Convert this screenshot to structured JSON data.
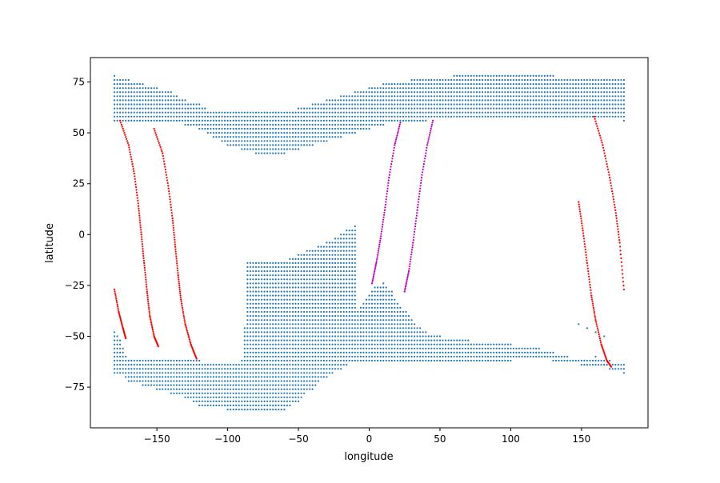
{
  "chart_data": {
    "type": "scatter",
    "title": "",
    "xlabel": "longitude",
    "ylabel": "latitude",
    "xlim": [
      -197,
      197
    ],
    "ylim": [
      -95,
      87
    ],
    "xticks": [
      -150,
      -100,
      -50,
      0,
      50,
      100,
      150
    ],
    "yticks": [
      -75,
      -50,
      -25,
      0,
      25,
      50,
      75
    ],
    "xtick_labels": [
      "−150",
      "−100",
      "−50",
      "0",
      "50",
      "100",
      "150"
    ],
    "ytick_labels": [
      "−75",
      "−50",
      "−25",
      "0",
      "25",
      "50",
      "75"
    ],
    "grid": false,
    "legend": "none",
    "grid_spacing": 2,
    "series": [
      {
        "color": "#1f77b4",
        "kind": "gridded-points",
        "rows": [
          [
            76,
            [
              [
                -180,
                -180
              ]
            ]
          ],
          [
            74,
            [
              [
                -180,
                -164
              ]
            ]
          ],
          [
            72,
            [
              [
                -180,
                -140
              ]
            ]
          ],
          [
            70,
            [
              [
                -180,
                -136
              ]
            ]
          ],
          [
            68,
            [
              [
                -180,
                -130
              ]
            ]
          ],
          [
            66,
            [
              [
                -180,
                -126
              ]
            ]
          ],
          [
            64,
            [
              [
                -180,
                -122
              ]
            ]
          ],
          [
            62,
            [
              [
                -180,
                -118
              ]
            ]
          ],
          [
            60,
            [
              [
                -180,
                -102
              ],
              [
                -66,
                -54
              ]
            ]
          ],
          [
            58,
            [
              [
                -180,
                -96
              ],
              [
                -70,
                -44
              ]
            ]
          ],
          [
            56,
            [
              [
                -180,
                -90
              ],
              [
                -74,
                -36
              ],
              [
                14,
                180
              ]
            ]
          ],
          [
            54,
            [
              [
                -164,
                -86
              ],
              [
                -78,
                -30
              ],
              [
                14,
                180
              ]
            ]
          ],
          [
            52,
            [
              [
                -150,
                -84
              ],
              [
                -80,
                -24
              ],
              [
                12,
                180
              ]
            ]
          ],
          [
            50,
            [
              [
                -140,
                -82
              ],
              [
                -82,
                -20
              ],
              [
                10,
                180
              ]
            ]
          ],
          [
            48,
            [
              [
                -130,
                -80
              ],
              [
                -82,
                -16
              ],
              [
                10,
                180
              ]
            ]
          ],
          [
            46,
            [
              [
                -120,
                -78
              ],
              [
                -84,
                -12
              ],
              [
                8,
                180
              ]
            ]
          ],
          [
            44,
            [
              [
                -110,
                -76
              ],
              [
                -84,
                -8
              ],
              [
                8,
                180
              ]
            ]
          ],
          [
            42,
            [
              [
                -98,
                -74
              ],
              [
                -82,
                -16
              ]
            ]
          ],
          [
            40,
            [
              [
                -86,
                -72
              ],
              [
                -76,
                -54
              ]
            ]
          ]
        ],
        "upper_band": [
          [
            -180,
            56,
            78
          ],
          [
            -170,
            56,
            76
          ],
          [
            -160,
            56,
            74
          ],
          [
            -150,
            56,
            72
          ],
          [
            -140,
            56,
            70
          ],
          [
            -130,
            54,
            66
          ],
          [
            -120,
            52,
            64
          ],
          [
            -110,
            48,
            60
          ],
          [
            -100,
            44,
            60
          ],
          [
            -90,
            42,
            60
          ],
          [
            -80,
            40,
            60
          ],
          [
            -70,
            40,
            60
          ],
          [
            -60,
            40,
            60
          ],
          [
            -50,
            42,
            62
          ],
          [
            -40,
            44,
            64
          ],
          [
            -30,
            46,
            66
          ],
          [
            -20,
            48,
            68
          ],
          [
            -10,
            50,
            70
          ],
          [
            0,
            52,
            72
          ],
          [
            10,
            54,
            74
          ],
          [
            20,
            56,
            74
          ],
          [
            30,
            56,
            76
          ],
          [
            40,
            56,
            76
          ],
          [
            50,
            58,
            76
          ],
          [
            60,
            58,
            78
          ],
          [
            70,
            58,
            78
          ],
          [
            80,
            58,
            78
          ],
          [
            90,
            58,
            78
          ],
          [
            100,
            58,
            78
          ],
          [
            110,
            58,
            78
          ],
          [
            120,
            58,
            78
          ],
          [
            130,
            58,
            78
          ],
          [
            140,
            58,
            76
          ],
          [
            150,
            58,
            76
          ],
          [
            160,
            58,
            76
          ],
          [
            170,
            58,
            76
          ],
          [
            180,
            56,
            76
          ]
        ],
        "lower_band": [
          [
            -180,
            -68,
            -48
          ],
          [
            -176,
            -68,
            -52
          ],
          [
            -170,
            -72,
            -62
          ],
          [
            -160,
            -74,
            -62
          ],
          [
            -150,
            -76,
            -62
          ],
          [
            -140,
            -78,
            -62
          ],
          [
            -130,
            -80,
            -62
          ],
          [
            -120,
            -84,
            -62
          ],
          [
            -110,
            -84,
            -64
          ],
          [
            -100,
            -86,
            -64
          ],
          [
            -90,
            -86,
            -62
          ],
          [
            -84,
            -86,
            -14
          ],
          [
            -80,
            -86,
            -18
          ],
          [
            -76,
            -86,
            -22
          ],
          [
            -70,
            -86,
            -28
          ],
          [
            -66,
            -86,
            -34
          ],
          [
            -60,
            -86,
            -40
          ],
          [
            -56,
            -84,
            -46
          ],
          [
            -50,
            -82,
            -50
          ],
          [
            -46,
            -78,
            -54
          ],
          [
            -40,
            -76,
            -58
          ],
          [
            -36,
            -72,
            -60
          ],
          [
            -30,
            -70,
            -56
          ],
          [
            -26,
            -68,
            -52
          ],
          [
            -20,
            -66,
            -48
          ],
          [
            -16,
            -64,
            -44
          ],
          [
            -10,
            -62,
            -40
          ],
          [
            -6,
            -62,
            -36
          ],
          [
            0,
            -62,
            -30
          ],
          [
            4,
            -62,
            -26
          ],
          [
            10,
            -62,
            -24
          ],
          [
            16,
            -62,
            -28
          ],
          [
            20,
            -62,
            -34
          ],
          [
            26,
            -62,
            -38
          ],
          [
            30,
            -62,
            -42
          ],
          [
            36,
            -62,
            -46
          ],
          [
            40,
            -62,
            -48
          ],
          [
            50,
            -62,
            -50
          ],
          [
            60,
            -62,
            -52
          ],
          [
            70,
            -62,
            -52
          ],
          [
            80,
            -62,
            -54
          ],
          [
            90,
            -62,
            -54
          ],
          [
            100,
            -62,
            -54
          ],
          [
            110,
            -60,
            -56
          ],
          [
            120,
            -60,
            -56
          ],
          [
            130,
            -62,
            -58
          ],
          [
            140,
            -62,
            -60
          ],
          [
            150,
            -64,
            -62
          ],
          [
            160,
            -64,
            -60
          ],
          [
            170,
            -66,
            -62
          ],
          [
            180,
            -68,
            -64
          ]
        ],
        "antarctic_core": [
          [
            -180,
            -68,
            -64
          ],
          [
            -120,
            -86,
            -62
          ],
          [
            -60,
            -88,
            -62
          ],
          [
            0,
            -84,
            -62
          ],
          [
            60,
            -78,
            -62
          ],
          [
            120,
            -70,
            -62
          ],
          [
            180,
            -68,
            -64
          ]
        ],
        "peninsula_tip": [
          [
            -86,
            -14
          ],
          [
            -70,
            -14
          ],
          [
            -56,
            -12
          ],
          [
            -44,
            -8
          ],
          [
            -30,
            -4
          ],
          [
            -16,
            2
          ],
          [
            -10,
            4
          ]
        ],
        "mid_block": [
          [
            -86,
            -14
          ],
          [
            -80,
            -22
          ],
          [
            -74,
            -32
          ],
          [
            -66,
            -42
          ],
          [
            -58,
            -50
          ],
          [
            -50,
            -56
          ],
          [
            -40,
            -60
          ],
          [
            -30,
            -58
          ],
          [
            -20,
            -54
          ],
          [
            -10,
            -50
          ],
          [
            0,
            -42
          ],
          [
            10,
            -34
          ],
          [
            20,
            -36
          ],
          [
            30,
            -40
          ],
          [
            40,
            -46
          ],
          [
            50,
            -48
          ],
          [
            60,
            -50
          ],
          [
            70,
            -52
          ],
          [
            80,
            -52
          ],
          [
            90,
            -54
          ],
          [
            100,
            -54
          ],
          [
            110,
            -54
          ],
          [
            116,
            -52
          ]
        ],
        "isolated": [
          [
            148,
            -44
          ],
          [
            154,
            -46
          ],
          [
            160,
            -48
          ],
          [
            166,
            -50
          ]
        ]
      },
      {
        "color": "#ff0000",
        "kind": "track",
        "tracks": [
          [
            [
              -176,
              56
            ],
            [
              -170,
              44
            ],
            [
              -166,
              30
            ],
            [
              -163,
              14
            ],
            [
              -161,
              0
            ],
            [
              -159,
              -14
            ],
            [
              -157,
              -28
            ],
            [
              -155,
              -40
            ],
            [
              -152,
              -50
            ],
            [
              -149,
              -55
            ]
          ],
          [
            [
              -152,
              52
            ],
            [
              -146,
              40
            ],
            [
              -142,
              24
            ],
            [
              -139,
              8
            ],
            [
              -137,
              -6
            ],
            [
              -135,
              -20
            ],
            [
              -133,
              -32
            ],
            [
              -130,
              -44
            ],
            [
              -126,
              -54
            ],
            [
              -122,
              -61
            ]
          ],
          [
            [
              -180,
              -27
            ],
            [
              -177,
              -38
            ],
            [
              -174,
              -46
            ],
            [
              -172,
              -51
            ]
          ],
          [
            [
              159,
              58
            ],
            [
              165,
              44
            ],
            [
              170,
              28
            ],
            [
              174,
              12
            ],
            [
              177,
              -4
            ],
            [
              180,
              -27
            ]
          ],
          [
            [
              148,
              16
            ],
            [
              151,
              2
            ],
            [
              154,
              -14
            ],
            [
              157,
              -30
            ],
            [
              160,
              -42
            ],
            [
              164,
              -54
            ],
            [
              168,
              -62
            ],
            [
              171,
              -65
            ]
          ]
        ]
      },
      {
        "color": "#bf00bf",
        "kind": "track",
        "tracks": [
          [
            [
              22,
              55
            ],
            [
              18,
              44
            ],
            [
              14,
              28
            ],
            [
              11,
              12
            ],
            [
              8,
              -2
            ],
            [
              5,
              -14
            ],
            [
              2,
              -24
            ]
          ],
          [
            [
              45,
              56
            ],
            [
              41,
              44
            ],
            [
              37,
              28
            ],
            [
              34,
              12
            ],
            [
              31,
              -4
            ],
            [
              28,
              -18
            ],
            [
              25,
              -28
            ]
          ]
        ]
      }
    ]
  }
}
